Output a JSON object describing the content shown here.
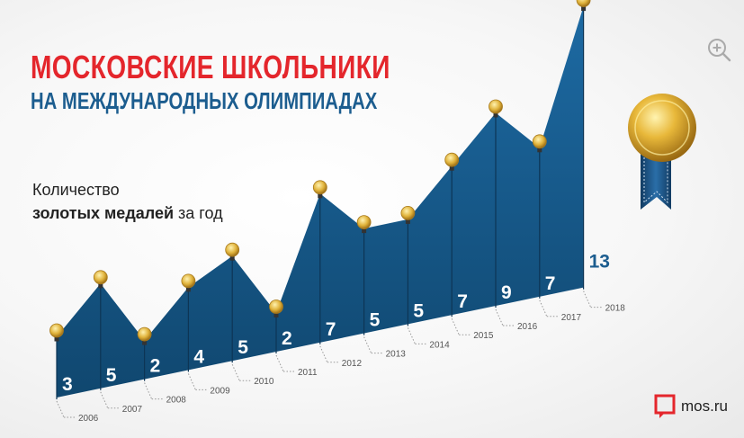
{
  "title": {
    "line1": "МОСКОВСКИЕ ШКОЛЬНИКИ",
    "line2": "НА МЕЖДУНАРОДНЫХ ОЛИМПИАДАХ"
  },
  "subtitle": {
    "line1": "Количество",
    "line2_bold": "золотых медалей",
    "line2_rest": " за год"
  },
  "brand": {
    "label": "mos.ru",
    "icon": "mos-logo-icon"
  },
  "zoom": {
    "icon": "zoom-in-icon"
  },
  "colors": {
    "title_red": "#e4262c",
    "title_blue": "#1c5d8f",
    "area": "#1c5d8f",
    "coin": "#e0b23a"
  },
  "chart_data": {
    "type": "area",
    "title": "",
    "xlabel": "",
    "ylabel": "",
    "categories": [
      "2006",
      "2007",
      "2008",
      "2009",
      "2010",
      "2011",
      "2012",
      "2013",
      "2014",
      "2015",
      "2016",
      "2017",
      "2018"
    ],
    "series": [
      {
        "values": [
          3,
          5,
          2,
          4,
          5,
          2,
          7,
          5,
          5,
          7,
          9,
          7,
          13
        ]
      }
    ],
    "ylim": [
      0,
      13
    ],
    "grid": false,
    "legend": "none"
  }
}
